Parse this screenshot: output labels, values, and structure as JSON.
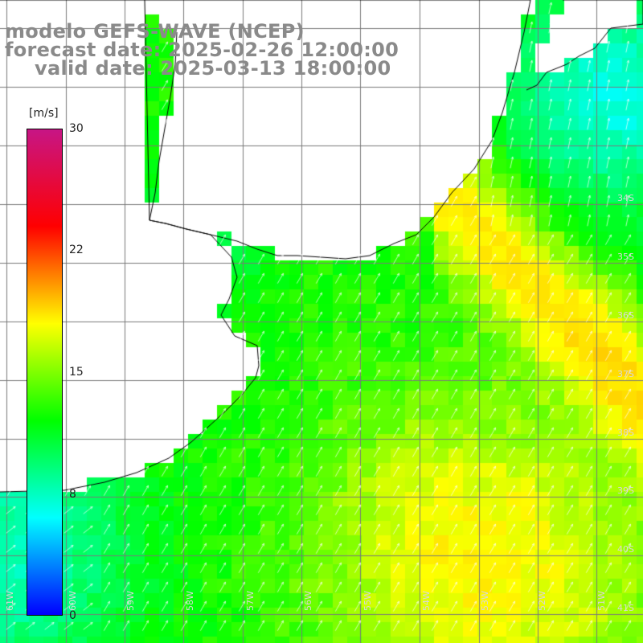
{
  "title": {
    "line1": "modelo GEFS-WAVE (NCEP)",
    "line2": "forecast date: 2025-02-26 12:00:00",
    "line3": "valid date: 2025-03-13 18:00:00"
  },
  "colorbar": {
    "units": "[m/s]",
    "ticks": [
      "30",
      "22",
      "15",
      "8",
      "0"
    ],
    "min": 0,
    "max": 30,
    "colors": [
      "#0000ff",
      "#00ffff",
      "#00ff00",
      "#ffff00",
      "#ff0000",
      "#c71585"
    ]
  },
  "lat_labels": [
    "34S",
    "35S",
    "36S",
    "37S",
    "38S",
    "39S",
    "40S",
    "41S"
  ],
  "lon_labels": [
    "61W",
    "60W",
    "59W",
    "58W",
    "57W",
    "56W",
    "55W",
    "54W",
    "53W",
    "52W",
    "51W"
  ],
  "map": {
    "region": "Rio de la Plata / South Atlantic",
    "field": "wind speed with direction arrows",
    "dominant_wind": "from south-west",
    "grid": true
  }
}
